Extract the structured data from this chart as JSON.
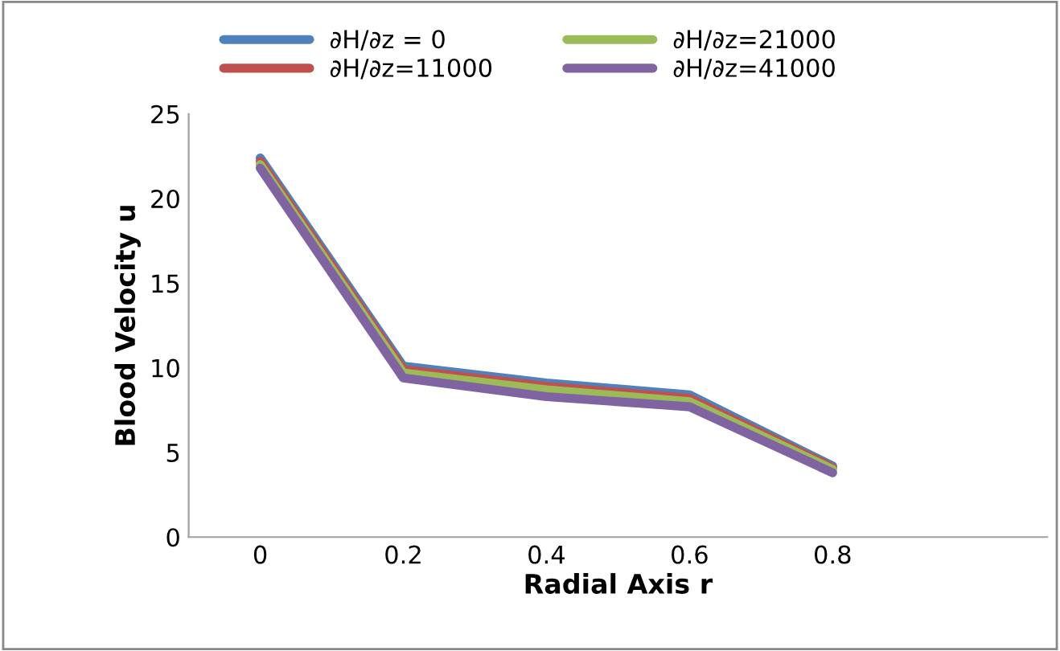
{
  "chart_data": {
    "type": "line",
    "xlabel": "Radial Axis r",
    "ylabel": "Blood Velocity u",
    "categories": [
      "0",
      "0.2",
      "0.4",
      "0.6",
      "0.8",
      null
    ],
    "series": [
      {
        "name": "∂H/∂z = 0",
        "color": "#4f81bd",
        "values": [
          22.4,
          10.1,
          9.1,
          8.4,
          4.2,
          null
        ]
      },
      {
        "name": "∂H/∂z=11000",
        "color": "#c0504d",
        "values": [
          22.2,
          9.9,
          8.9,
          8.2,
          4.1,
          null
        ]
      },
      {
        "name": "∂H/∂z=21000",
        "color": "#9bbb59",
        "values": [
          22.0,
          9.7,
          8.7,
          8.0,
          4.0,
          null
        ]
      },
      {
        "name": "∂H/∂z=41000",
        "color": "#8064a2",
        "values": [
          21.8,
          9.4,
          8.3,
          7.7,
          3.8,
          null
        ]
      }
    ],
    "ylim": [
      0,
      25
    ],
    "yticks": [
      0,
      5,
      10,
      15,
      20,
      25
    ],
    "grid": false,
    "legend": "top",
    "marker": "none",
    "line_style": "solid"
  }
}
